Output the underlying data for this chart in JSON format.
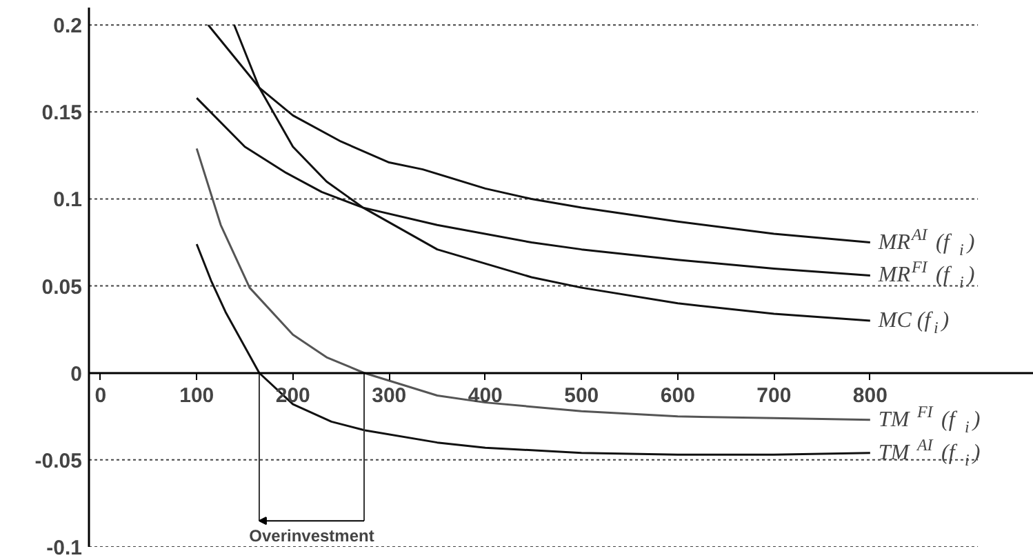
{
  "chart_data": {
    "type": "line",
    "xlim": [
      -12,
      970
    ],
    "ylim": [
      -0.1,
      0.21
    ],
    "xticks": [
      0,
      100,
      200,
      300,
      400,
      500,
      600,
      700,
      800
    ],
    "yticks": [
      -0.1,
      -0.05,
      0,
      0.05,
      0.1,
      0.15,
      0.2
    ],
    "grid": "y",
    "marker": "none",
    "line_style": "solid",
    "series": [
      {
        "name": "MR$^{AI}$ (f$_{i}$)",
        "color": "#111111",
        "x": [
          112,
          165,
          200,
          250,
          300,
          335,
          400,
          448,
          500,
          600,
          700,
          800
        ],
        "values": [
          0.2,
          0.164,
          0.148,
          0.133,
          0.121,
          0.117,
          0.106,
          0.1,
          0.095,
          0.087,
          0.08,
          0.075
        ]
      },
      {
        "name": "MR$^{FI}$ (f$_{i}$)",
        "color": "#111111",
        "x": [
          100,
          150,
          193,
          230,
          273,
          350,
          448,
          500,
          600,
          700,
          800
        ],
        "values": [
          0.158,
          0.13,
          0.115,
          0.104,
          0.095,
          0.085,
          0.075,
          0.071,
          0.065,
          0.06,
          0.056
        ]
      },
      {
        "name": "MC (f$_{i}$)",
        "color": "#111111",
        "x": [
          139,
          165,
          200,
          235,
          273,
          350,
          448,
          500,
          600,
          700,
          800
        ],
        "values": [
          0.2,
          0.164,
          0.13,
          0.11,
          0.095,
          0.071,
          0.055,
          0.049,
          0.04,
          0.034,
          0.03
        ]
      },
      {
        "name": "TM $^{FI}$ (f$_{i}$)",
        "color": "#555555",
        "x": [
          100,
          125,
          155,
          200,
          235,
          274,
          350,
          400,
          500,
          600,
          700,
          800
        ],
        "values": [
          0.129,
          0.085,
          0.049,
          0.022,
          0.009,
          0.0,
          -0.013,
          -0.017,
          -0.022,
          -0.025,
          -0.026,
          -0.027
        ]
      },
      {
        "name": "TM $^{AI}$ (f$_{i}$)",
        "color": "#111111",
        "x": [
          100,
          115,
          130,
          165,
          200,
          240,
          275,
          350,
          400,
          500,
          600,
          700,
          800
        ],
        "values": [
          0.074,
          0.053,
          0.035,
          0.0,
          -0.018,
          -0.028,
          -0.033,
          -0.04,
          -0.043,
          -0.046,
          -0.047,
          -0.047,
          -0.046
        ]
      }
    ],
    "annotations": [
      {
        "text": "Overinvestment",
        "x": 165,
        "y": 0
      }
    ]
  }
}
